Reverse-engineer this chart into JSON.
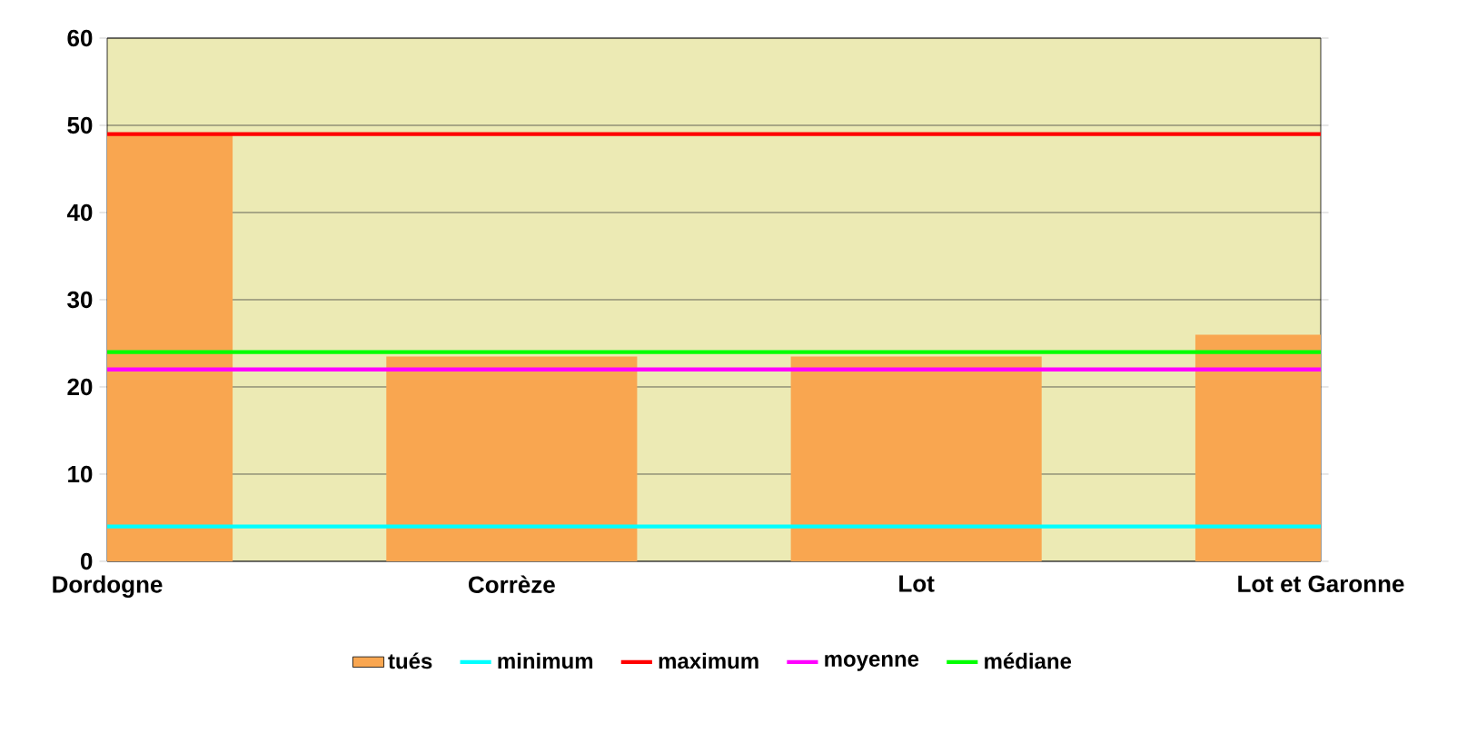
{
  "chart_data": {
    "type": "bar",
    "categories": [
      "Dordogne",
      "Corrèze",
      "Lot",
      "Lot et Garonne"
    ],
    "series": [
      {
        "name": "tués",
        "color": "#f9a650",
        "values": [
          49,
          23.5,
          23.5,
          26
        ]
      },
      {
        "name": "minimum",
        "type": "line",
        "color": "#00ffff",
        "values": [
          4,
          4,
          4,
          4
        ]
      },
      {
        "name": "maximum",
        "type": "line",
        "color": "#ff0000",
        "values": [
          49,
          49,
          49,
          49
        ]
      },
      {
        "name": "moyenne",
        "type": "line",
        "color": "#ff00ff",
        "values": [
          22,
          22,
          22,
          22
        ]
      },
      {
        "name": "médiane",
        "type": "line",
        "color": "#00ff00",
        "values": [
          24,
          24,
          24,
          24
        ]
      }
    ],
    "ylim": [
      0,
      60
    ],
    "yticks": [
      0,
      10,
      20,
      30,
      40,
      50,
      60
    ],
    "grid": "y",
    "legend": "bottom",
    "marker": "none",
    "line_style": "solid"
  }
}
